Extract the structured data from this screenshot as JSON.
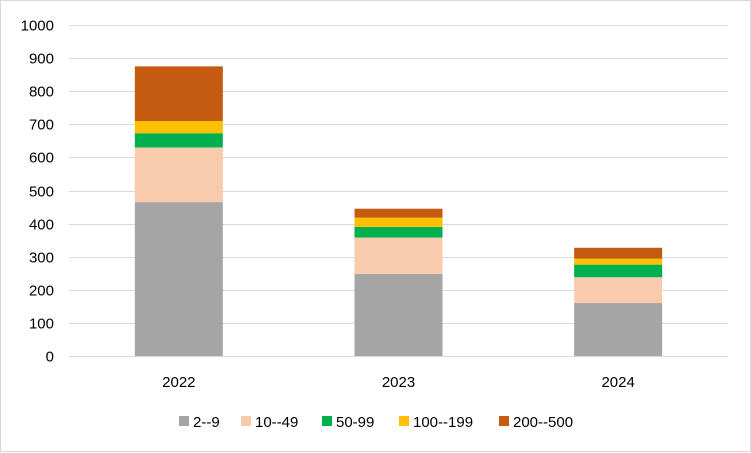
{
  "chart_data": {
    "type": "bar",
    "stacked": true,
    "categories": [
      "2022",
      "2023",
      "2024"
    ],
    "series": [
      {
        "name": "2--9",
        "color": "#a5a5a5",
        "values": [
          465,
          248,
          160
        ]
      },
      {
        "name": "10--49",
        "color": "#f8cbad",
        "values": [
          165,
          110,
          78
        ]
      },
      {
        "name": "50-99",
        "color": "#00b050",
        "values": [
          43,
          32,
          38
        ]
      },
      {
        "name": "100--199",
        "color": "#ffc000",
        "values": [
          37,
          28,
          18
        ]
      },
      {
        "name": "200--500",
        "color": "#c55a11",
        "values": [
          165,
          27,
          33
        ]
      }
    ],
    "yticks": [
      "0",
      "100",
      "200",
      "300",
      "400",
      "500",
      "600",
      "700",
      "800",
      "900",
      "1000"
    ],
    "ylim": [
      0,
      1000
    ],
    "grid": true,
    "legend_position": "bottom",
    "title": "",
    "xlabel": "",
    "ylabel": ""
  }
}
